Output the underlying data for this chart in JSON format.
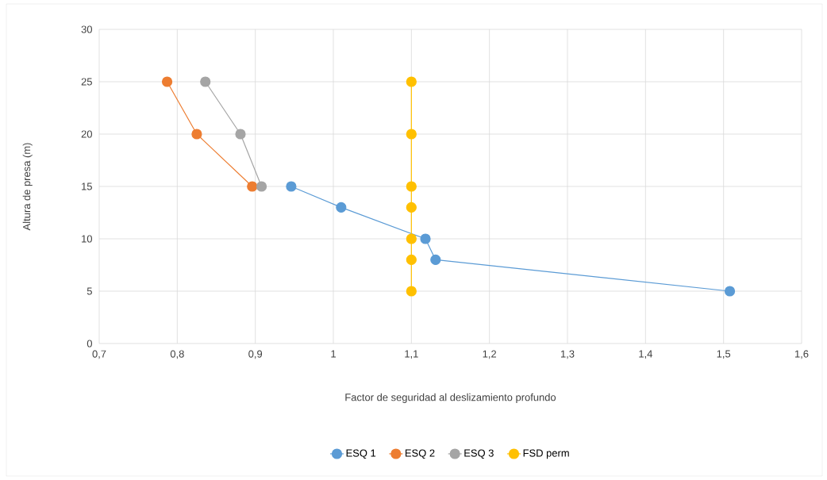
{
  "chart_data": {
    "type": "line",
    "xlabel": "Factor de seguridad al deslizamiento profundo",
    "ylabel": "Altura de presa (m)",
    "xlim": [
      0.7,
      1.6
    ],
    "xticks": [
      {
        "value": 0.7,
        "label": "0,7"
      },
      {
        "value": 0.8,
        "label": "0,8"
      },
      {
        "value": 0.9,
        "label": "0,9"
      },
      1,
      {
        "value": 1.1,
        "label": "1,1"
      },
      {
        "value": 1.2,
        "label": "1,2"
      },
      {
        "value": 1.3,
        "label": "1,3"
      },
      {
        "value": 1.4,
        "label": "1,4"
      },
      {
        "value": 1.5,
        "label": "1,5"
      },
      {
        "value": 1.6,
        "label": "1,6"
      }
    ],
    "ylim": [
      0,
      30
    ],
    "yticks": [
      0,
      5,
      10,
      15,
      20,
      25,
      30
    ],
    "grid": true,
    "legend": "bottom",
    "marker": "circle",
    "line_style": "solid",
    "series": [
      {
        "name": "ESQ 1",
        "color": "#5b9bd5",
        "x": [
          1.508,
          1.131,
          1.118,
          1.01,
          0.946
        ],
        "values": [
          5,
          8,
          10,
          13,
          15
        ]
      },
      {
        "name": "ESQ 2",
        "color": "#ed7d31",
        "x": [
          0.896,
          0.825,
          0.787
        ],
        "values": [
          15,
          20,
          25
        ]
      },
      {
        "name": "ESQ 3",
        "color": "#a5a5a5",
        "x": [
          0.908,
          0.881,
          0.836
        ],
        "values": [
          15,
          20,
          25
        ]
      },
      {
        "name": "FSD perm",
        "color": "#ffc000",
        "x": [
          1.1,
          1.1,
          1.1,
          1.1,
          1.1,
          1.1,
          1.1
        ],
        "values": [
          5,
          8,
          10,
          13,
          15,
          20,
          25
        ]
      }
    ]
  }
}
